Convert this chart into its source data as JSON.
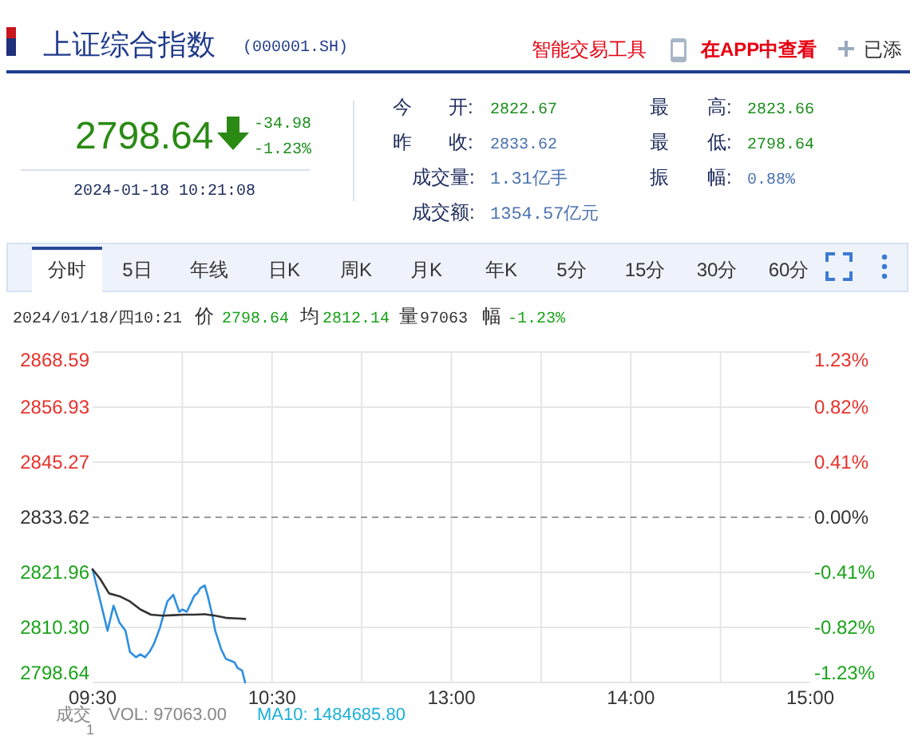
{
  "chart_data": [
    {
      "type": "line",
      "title": "上证综合指数",
      "subtitle": "(000001.SH)",
      "annotations": [
        "智能交易工具",
        "在APP中查看",
        "已添",
        "2798.64",
        "-34.98",
        "-1.23%",
        "2024-01-18 10:21:08",
        "今",
        "开:",
        "2822.67",
        "昨",
        "收:",
        "2833.62",
        "成交量:",
        "1.31亿手",
        "成交额:",
        "1354.57亿元",
        "最",
        "高:",
        "2823.66",
        "最",
        "低:",
        "2798.64",
        "振",
        "幅:",
        "0.88%",
        "分时",
        "5日",
        "年线",
        "日K",
        "周K",
        "月K",
        "年K",
        "5分",
        "15分",
        "30分",
        "60分",
        "2024/01/18/四10:21",
        "价",
        "2798.64",
        "均",
        "2812.14",
        "量",
        "97063",
        "幅",
        "-1.23%",
        "成交",
        "VOL: 97063.00",
        "MA10: 1484685.80",
        "1"
      ],
      "series": [
        {
          "color": "#2f8fe0",
          "x": [
            9.5,
            9.5833,
            9.6167,
            9.65,
            9.6833,
            9.7083,
            9.7417,
            9.7667,
            9.7917,
            9.8167,
            9.8417,
            9.875,
            9.9,
            9.9167,
            9.95,
            9.9667,
            9.9833,
            10.0,
            10.025,
            10.05,
            10.0667,
            10.0833,
            10.1,
            10.125,
            10.1417,
            10.1667,
            10.1833,
            10.2167,
            10.2417,
            10.2583,
            10.2917,
            10.3083,
            10.3333,
            10.35
          ],
          "values": [
            2822.6,
            2809.6,
            2814.9,
            2811.3,
            2809.6,
            2805.1,
            2804.0,
            2804.6,
            2804.0,
            2805.1,
            2806.8,
            2810.2,
            2813.6,
            2815.8,
            2817.2,
            2815.3,
            2813.6,
            2814.1,
            2813.6,
            2815.6,
            2817.0,
            2817.5,
            2818.6,
            2819.2,
            2817.0,
            2813.0,
            2809.6,
            2805.7,
            2803.7,
            2803.4,
            2802.9,
            2801.7,
            2801.2,
            2798.64
          ]
        },
        {
          "color": "#333333",
          "x": [
            9.5,
            9.5417,
            9.5917,
            9.65,
            9.7083,
            9.7667,
            9.825,
            9.8917,
            9.95,
            10.0083,
            10.0667,
            10.125,
            10.1833,
            10.25,
            10.3083,
            10.35
          ],
          "values": [
            2822.6,
            2820.6,
            2817.5,
            2816.9,
            2815.8,
            2814.1,
            2813.0,
            2812.8,
            2812.9,
            2813.0,
            2813.0,
            2813.1,
            2812.8,
            2812.3,
            2812.2,
            2812.1
          ]
        }
      ],
      "xlim": [
        9.5,
        11.5
      ],
      "xticks": [
        {
          "value": 9.5,
          "label": "09:30"
        },
        {
          "value": 10,
          "label": null
        },
        {
          "value": 10.5,
          "label": "10:30"
        },
        {
          "value": 11,
          "label": null
        }
      ],
      "ylim": [
        2798.64,
        2868.59
      ],
      "yticks": [
        2798.64,
        {
          "value": 2810.3,
          "label": "2810.30"
        },
        2821.96,
        2833.62,
        2845.27,
        2856.93,
        2868.59
      ],
      "ref_lines": [
        {
          "axis": "y",
          "value": 2833.62,
          "color": "#999999",
          "line_style": "dashed"
        }
      ],
      "grid": true
    },
    {
      "type": "line",
      "xlim": [
        13,
        15
      ],
      "xticks": [
        {
          "value": 13,
          "label": "13:00"
        },
        {
          "value": 13.5,
          "label": null
        },
        {
          "value": 14,
          "label": "14:00"
        },
        {
          "value": 14.5,
          "label": null
        },
        {
          "value": 15,
          "label": "15:00"
        }
      ],
      "y2lim": [
        -1.23,
        1.23
      ],
      "y2ticks": [
        {
          "value": -1.23,
          "label": "-1.23%"
        },
        {
          "value": -0.82,
          "label": "-0.82%"
        },
        {
          "value": -0.41,
          "label": "-0.41%"
        },
        {
          "value": 0,
          "label": "0.00%"
        },
        {
          "value": 0.41,
          "label": "0.41%"
        },
        {
          "value": 0.82,
          "label": "0.82%"
        },
        {
          "value": 1.23,
          "label": "1.23%"
        }
      ],
      "ref_lines": [
        {
          "axis": "y2",
          "value": 0,
          "color": "#999999",
          "line_style": "dashed"
        }
      ],
      "grid": true
    }
  ]
}
